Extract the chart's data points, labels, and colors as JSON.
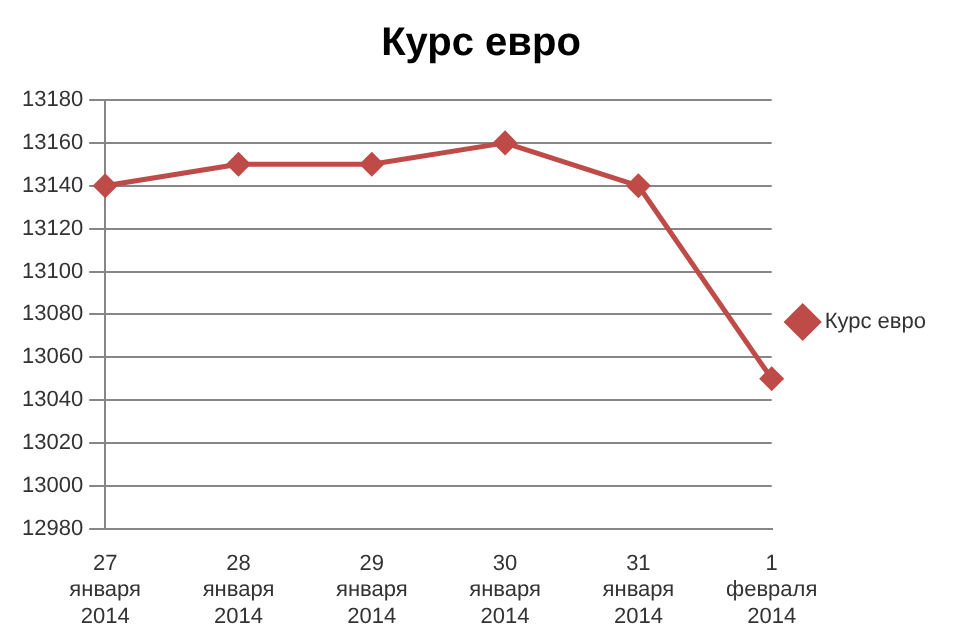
{
  "chart_data": {
    "type": "line",
    "title": "Курс евро",
    "categories": [
      "27 января 2014",
      "28 января 2014",
      "29 января 2014",
      "30 января 2014",
      "31 января 2014",
      "1 февраля 2014"
    ],
    "series": [
      {
        "name": "Курс евро",
        "color": "#be4b48",
        "values": [
          13140,
          13150,
          13150,
          13160,
          13140,
          13050
        ]
      }
    ],
    "ylim": [
      12980,
      13180
    ],
    "yticks": [
      12980,
      13000,
      13020,
      13040,
      13060,
      13080,
      13100,
      13120,
      13140,
      13160,
      13180
    ],
    "grid": "y",
    "legend": "right",
    "marker": "diamond",
    "line_style": "solid"
  }
}
